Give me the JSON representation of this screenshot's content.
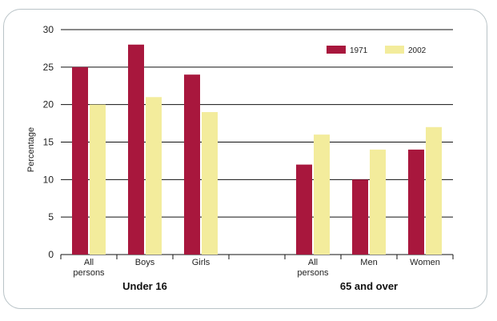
{
  "chart_data": {
    "type": "bar",
    "ylabel": "Percentage",
    "ylim": [
      0,
      30
    ],
    "yticks": [
      "0",
      "5",
      "10",
      "15",
      "20",
      "25",
      "30"
    ],
    "grid": true,
    "legend_position": "top-right",
    "groups": [
      {
        "label": "Under 16",
        "categories": [
          "All persons",
          "Boys",
          "Girls"
        ]
      },
      {
        "label": "65 and over",
        "categories": [
          "All persons",
          "Men",
          "Women"
        ]
      }
    ],
    "categories": [
      "All persons",
      "Boys",
      "Girls",
      "",
      "All persons",
      "Men",
      "Women"
    ],
    "series": [
      {
        "name": "1971",
        "color": "#a8173d",
        "values": [
          25,
          28,
          24,
          null,
          12,
          10,
          14
        ]
      },
      {
        "name": "2002",
        "color": "#f3ec9c",
        "values": [
          20,
          21,
          19,
          null,
          16,
          14,
          17
        ]
      }
    ]
  }
}
